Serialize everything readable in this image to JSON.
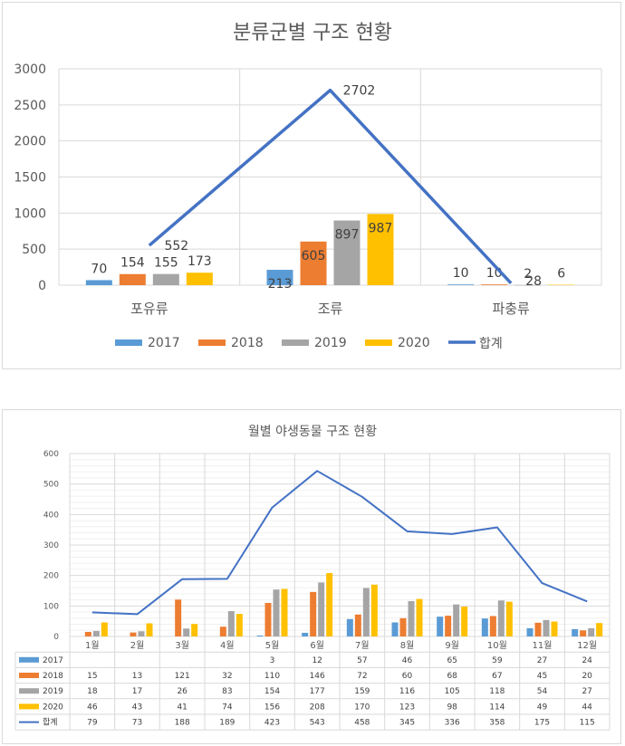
{
  "chart_data": [
    {
      "type": "bar",
      "title": "분류군별 구조 현황",
      "categories": [
        "포유류",
        "조류",
        "파충류"
      ],
      "series": [
        {
          "name": "2017",
          "values": [
            70,
            213,
            10
          ],
          "color": "#5B9BD5"
        },
        {
          "name": "2018",
          "values": [
            154,
            605,
            10
          ],
          "color": "#ED7D31"
        },
        {
          "name": "2019",
          "values": [
            155,
            897,
            2
          ],
          "color": "#A5A5A5"
        },
        {
          "name": "2020",
          "values": [
            173,
            987,
            6
          ],
          "color": "#FFC000"
        }
      ],
      "line_series": {
        "name": "합계",
        "values": [
          552,
          2702,
          28
        ],
        "color": "#4472C4"
      },
      "ylim": [
        0,
        3000
      ],
      "yticks": [
        "0",
        "500",
        "1000",
        "1500",
        "2000",
        "2500",
        "3000"
      ],
      "legend": "bottom",
      "grid": true
    },
    {
      "type": "bar",
      "title": "월별 야생동물 구조 현황",
      "categories": [
        "1월",
        "2월",
        "3월",
        "4월",
        "5월",
        "6월",
        "7월",
        "8월",
        "9월",
        "10월",
        "11월",
        "12월"
      ],
      "series": [
        {
          "name": "2017",
          "values": [
            null,
            null,
            null,
            null,
            3,
            12,
            57,
            46,
            65,
            59,
            27,
            24
          ],
          "color": "#5B9BD5"
        },
        {
          "name": "2018",
          "values": [
            15,
            13,
            121,
            32,
            110,
            146,
            72,
            60,
            68,
            67,
            45,
            20
          ],
          "color": "#ED7D31"
        },
        {
          "name": "2019",
          "values": [
            18,
            17,
            26,
            83,
            154,
            177,
            159,
            116,
            105,
            118,
            54,
            27
          ],
          "color": "#A5A5A5"
        },
        {
          "name": "2020",
          "values": [
            46,
            43,
            41,
            74,
            156,
            208,
            170,
            123,
            98,
            114,
            49,
            44
          ],
          "color": "#FFC000"
        }
      ],
      "line_series": {
        "name": "합계",
        "values": [
          79,
          73,
          188,
          189,
          423,
          543,
          458,
          345,
          336,
          358,
          175,
          115
        ],
        "color": "#4472C4"
      },
      "ylim": [
        0,
        600
      ],
      "yticks": [
        "0",
        "100",
        "200",
        "300",
        "400",
        "500",
        "600"
      ],
      "legend": "data-table",
      "grid": true
    }
  ]
}
